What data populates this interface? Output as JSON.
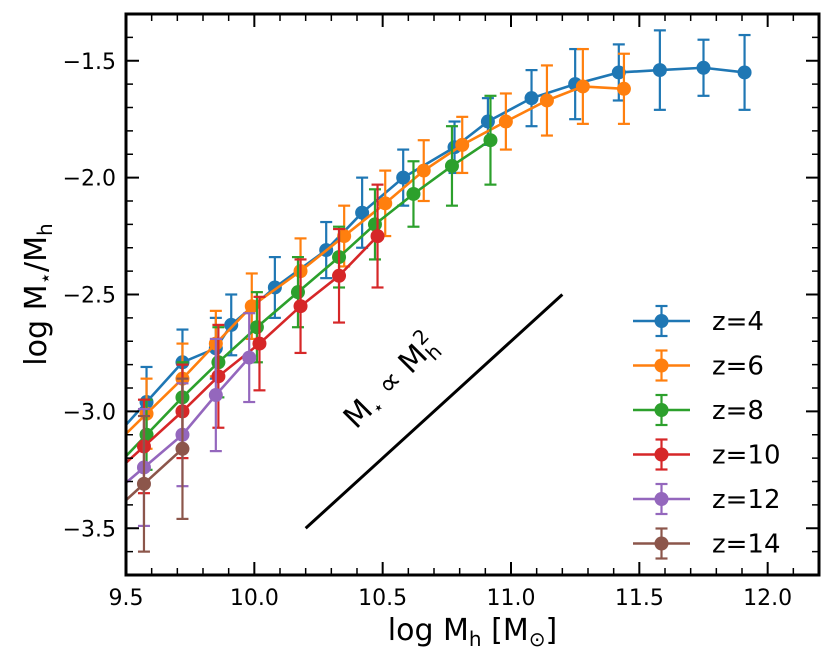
{
  "chart_data": {
    "type": "scatter",
    "title": "",
    "xlabel": "log  M",
    "xlabel_sub": "h",
    "xlabel_units": "  [M",
    "xlabel_units_sub": "⊙",
    "xlabel_units_close": "]",
    "ylabel_main": "log  M",
    "ylabel_sub1": "⋆",
    "ylabel_slash": "/M",
    "ylabel_sub2": "h",
    "annotation": {
      "text_main": "M",
      "text_sub1": "⋆",
      "text_prop": " ∝ M",
      "text_sub2": "h",
      "text_sup": "2",
      "line": {
        "x": [
          10.2,
          11.2
        ],
        "y": [
          -3.5,
          -2.5
        ]
      }
    },
    "xlim": [
      9.5,
      12.2
    ],
    "ylim": [
      -3.7,
      -1.3
    ],
    "xticks": [
      9.5,
      10.0,
      10.5,
      11.0,
      11.5,
      12.0
    ],
    "xtick_labels": [
      "9.5",
      "10.0",
      "10.5",
      "11.0",
      "11.5",
      "12.0"
    ],
    "yticks": [
      -3.5,
      -3.0,
      -2.5,
      -2.0,
      -1.5
    ],
    "ytick_labels": [
      "−3.5",
      "−3.0",
      "−2.5",
      "−2.0",
      "−1.5"
    ],
    "x_minor_step": 0.1,
    "y_minor_step": 0.1,
    "grid": false,
    "legend_position": "bottom-right",
    "series": [
      {
        "name": "z=4",
        "color": "#1f77b4",
        "x": [
          9.58,
          9.72,
          9.85,
          9.91,
          10.08,
          10.28,
          10.42,
          10.58,
          10.78,
          10.91,
          11.08,
          11.25,
          11.42,
          11.58,
          11.75,
          11.91
        ],
        "y": [
          -2.96,
          -2.79,
          -2.73,
          -2.63,
          -2.47,
          -2.31,
          -2.15,
          -2.0,
          -1.87,
          -1.76,
          -1.66,
          -1.6,
          -1.55,
          -1.54,
          -1.53,
          -1.55
        ],
        "err": [
          0.15,
          0.14,
          0.13,
          0.13,
          0.13,
          0.12,
          0.15,
          0.12,
          0.11,
          0.1,
          0.12,
          0.15,
          0.12,
          0.17,
          0.12,
          0.16
        ],
        "line_extends_to_x": 9.5
      },
      {
        "name": "z=6",
        "color": "#ff7f0e",
        "x": [
          9.58,
          9.72,
          9.85,
          9.99,
          10.18,
          10.35,
          10.51,
          10.66,
          10.81,
          10.98,
          11.14,
          11.28,
          11.44
        ],
        "y": [
          -3.01,
          -2.86,
          -2.71,
          -2.55,
          -2.4,
          -2.25,
          -2.11,
          -1.97,
          -1.86,
          -1.76,
          -1.67,
          -1.61,
          -1.62
        ],
        "err": [
          0.15,
          0.15,
          0.14,
          0.14,
          0.14,
          0.13,
          0.14,
          0.13,
          0.12,
          0.12,
          0.15,
          0.16,
          0.15
        ],
        "line_extends_to_x": 9.5
      },
      {
        "name": "z=8",
        "color": "#2ca02c",
        "x": [
          9.58,
          9.72,
          9.86,
          10.01,
          10.17,
          10.33,
          10.47,
          10.62,
          10.77,
          10.92
        ],
        "y": [
          -3.1,
          -2.94,
          -2.79,
          -2.64,
          -2.49,
          -2.34,
          -2.2,
          -2.07,
          -1.95,
          -1.84
        ],
        "err": [
          0.15,
          0.15,
          0.15,
          0.15,
          0.15,
          0.13,
          0.15,
          0.14,
          0.17,
          0.19
        ],
        "line_extends_to_x": 9.5
      },
      {
        "name": "z=10",
        "color": "#d62728",
        "x": [
          9.57,
          9.72,
          9.86,
          10.02,
          10.18,
          10.33,
          10.48
        ],
        "y": [
          -3.15,
          -3.0,
          -2.85,
          -2.71,
          -2.55,
          -2.42,
          -2.25
        ],
        "err": [
          0.2,
          0.2,
          0.22,
          0.2,
          0.2,
          0.2,
          0.22
        ],
        "line_extends_to_x": 9.5
      },
      {
        "name": "z=12",
        "color": "#9467bd",
        "x": [
          9.57,
          9.72,
          9.85,
          9.98
        ],
        "y": [
          -3.24,
          -3.1,
          -2.93,
          -2.77
        ],
        "err": [
          0.25,
          0.22,
          0.24,
          0.19
        ],
        "line_extends_to_x": 9.5
      },
      {
        "name": "z=14",
        "color": "#8c564b",
        "x": [
          9.57,
          9.72
        ],
        "y": [
          -3.31,
          -3.16
        ],
        "err": [
          0.29,
          0.3
        ],
        "line_extends_to_x": 9.5
      }
    ]
  }
}
